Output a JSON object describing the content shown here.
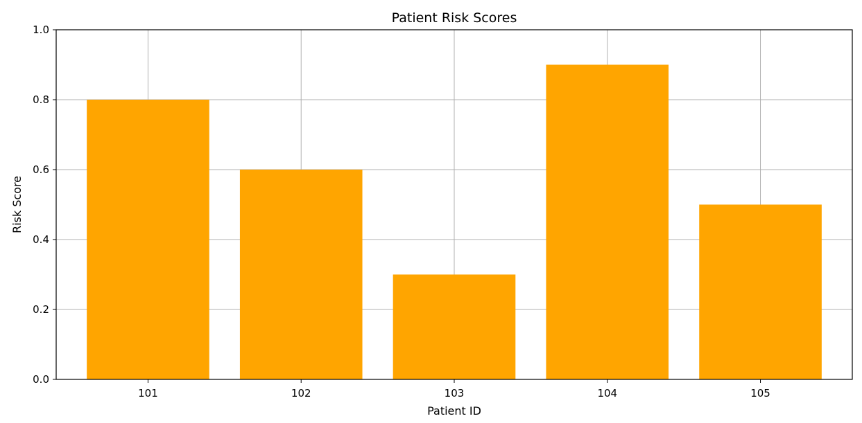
{
  "chart_data": {
    "type": "bar",
    "title": "Patient Risk Scores",
    "xlabel": "Patient ID",
    "ylabel": "Risk Score",
    "categories": [
      "101",
      "102",
      "103",
      "104",
      "105"
    ],
    "values": [
      0.8,
      0.6,
      0.3,
      0.9,
      0.5
    ],
    "ylim": [
      0.0,
      1.0
    ],
    "yticks": [
      "0.0",
      "0.2",
      "0.4",
      "0.6",
      "0.8",
      "1.0"
    ],
    "grid": true,
    "legend": "none",
    "colors": {
      "bar": "#FFA500",
      "grid": "#B0B0B0",
      "axis": "#000000"
    }
  }
}
